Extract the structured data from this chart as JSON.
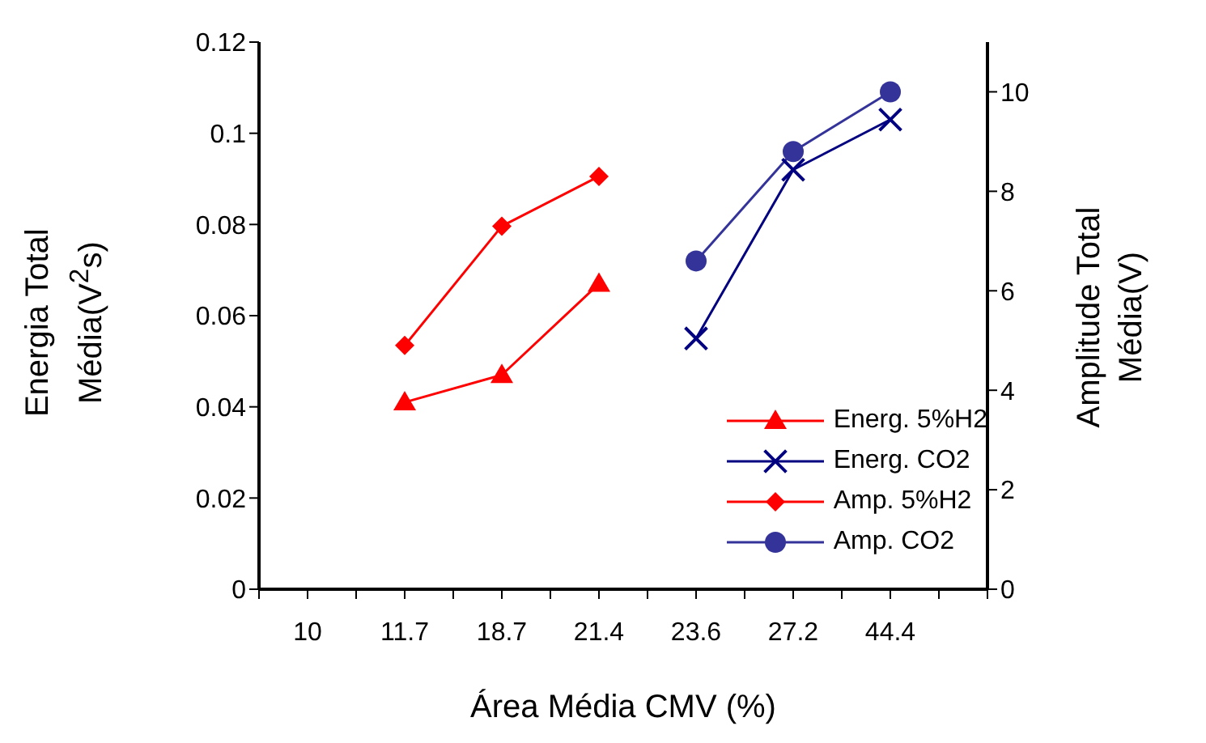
{
  "chart_data": {
    "type": "line",
    "xlabel": "Área Média CMV (%)",
    "ylabel": "Energia Total\nMédia(V$^{2}$s)",
    "y2label": "Amplitude Total\nMédia(V)",
    "categories": [
      "10",
      "11.7",
      "18.7",
      "21.4",
      "23.6",
      "27.2",
      "44.4"
    ],
    "ylim": [
      0,
      0.12
    ],
    "yticks": [
      0,
      0.02,
      0.04,
      0.06,
      0.08,
      0.1,
      0.12
    ],
    "y2lim": [
      0,
      11
    ],
    "y2ticks": [
      0,
      2,
      4,
      6,
      8,
      10
    ],
    "grid": false,
    "legend": "bottom right",
    "line_style": "solid",
    "series": [
      {
        "name": "Energ. 5%H2",
        "color": "#ff0000",
        "marker": "triangle",
        "values": [
          null,
          0.041,
          0.047,
          0.067,
          null,
          null,
          null
        ]
      },
      {
        "name": "Energ. CO2",
        "color": "#000080",
        "marker": "cross",
        "values": [
          null,
          null,
          null,
          null,
          0.055,
          0.092,
          0.103
        ]
      },
      {
        "name": "Amp. 5%H2",
        "color": "#ff0000",
        "marker": "diamond",
        "axis": "y2",
        "values": [
          null,
          4.9,
          7.3,
          8.3,
          null,
          null,
          null
        ]
      },
      {
        "name": "Amp. CO2",
        "color": "#333399",
        "marker": "circle",
        "axis": "y2",
        "values": [
          null,
          null,
          null,
          null,
          6.6,
          8.8,
          10.0
        ]
      }
    ]
  }
}
